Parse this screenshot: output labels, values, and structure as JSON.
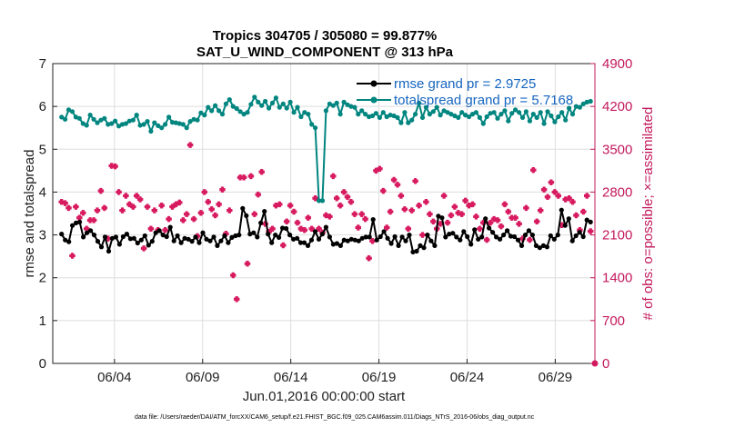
{
  "chart_data": {
    "type": "line",
    "title": "Tropics 304705 / 305080 = 99.877%",
    "subtitle": "SAT_U_WIND_COMPONENT @ 313 hPa",
    "xlabel": "Jun.01,2016 00:00:00 start",
    "ylabel": "rmse and totalspread",
    "ylabel_right": "# of obs: o=possible; ×=assimilated",
    "footnote": "data file: /Users/raeder/DAI/ATM_forcXX/CAM6_setup/f.e21.FHIST_BGC.f09_025.CAM6assim.011/Diags_NTrS_2016-06/obs_diag_output.nc",
    "xlim": [
      0.5,
      31.25
    ],
    "x_ticks": [
      4,
      9,
      14,
      19,
      24,
      29
    ],
    "x_tick_labels": [
      "06/04",
      "06/09",
      "06/14",
      "06/19",
      "06/24",
      "06/29"
    ],
    "ylim": [
      0,
      7
    ],
    "y_ticks": [
      "0",
      "1",
      "2",
      "3",
      "4",
      "5",
      "6",
      "7"
    ],
    "ylim_right": [
      0,
      4900
    ],
    "y_ticks_right": [
      "0",
      "700",
      "1400",
      "2100",
      "2800",
      "3500",
      "4200",
      "4900"
    ],
    "legend_position": "top-right",
    "colors": {
      "rmse": "#000000",
      "spread": "#00857f",
      "obs": "#d81b60",
      "legend_text": "#1565c0",
      "right_axis": "#c2185b",
      "grid": "#dddddd"
    },
    "series": [
      {
        "name": "rmse grand pr = 2.9725",
        "axis": "left",
        "style": "line-dot",
        "values": [
          3.02,
          2.88,
          2.84,
          3.22,
          3.28,
          3.3,
          2.95,
          3.05,
          3.1,
          3.0,
          2.85,
          2.72,
          2.95,
          2.62,
          2.92,
          2.95,
          2.78,
          2.96,
          3.02,
          2.91,
          2.92,
          2.81,
          2.88,
          2.98,
          2.76,
          2.85,
          3.05,
          3.1,
          3.0,
          2.96,
          3.18,
          2.86,
          2.98,
          2.82,
          2.92,
          2.9,
          2.85,
          2.95,
          2.82,
          3.05,
          2.9,
          2.86,
          2.95,
          2.75,
          2.86,
          2.98,
          2.82,
          2.94,
          2.98,
          3.0,
          3.62,
          3.45,
          3.02,
          3.05,
          2.95,
          3.28,
          3.55,
          3.02,
          2.82,
          3.0,
          2.94,
          3.16,
          3.15,
          3.0,
          2.9,
          2.92,
          2.82,
          2.82,
          2.75,
          2.88,
          3.08,
          2.9,
          3.02,
          3.18,
          2.95,
          2.78,
          2.8,
          2.75,
          2.88,
          2.86,
          2.9,
          2.88,
          2.86,
          2.92,
          2.95,
          2.95,
          3.36,
          2.88,
          2.96,
          3.08,
          2.92,
          2.8,
          2.96,
          2.75,
          2.95,
          2.86,
          3.0,
          2.6,
          2.62,
          2.75,
          2.7,
          3.0,
          2.86,
          2.75,
          3.44,
          3.4,
          2.95,
          3.02,
          3.04,
          2.95,
          2.88,
          3.08,
          2.96,
          2.78,
          3.12,
          2.9,
          2.95,
          3.38,
          3.16,
          3.06,
          2.95,
          2.9,
          3.0,
          3.1,
          2.97,
          2.96,
          2.88,
          2.75,
          3.0,
          3.1,
          3.0,
          2.75,
          2.7,
          2.75,
          2.72,
          2.98,
          2.9,
          3.0,
          3.58,
          3.22,
          3.38,
          2.86,
          2.98,
          3.06,
          2.96,
          3.35,
          3.3
        ]
      },
      {
        "name": "totalspread grand pr = 5.7168",
        "axis": "left",
        "style": "line-dot",
        "values": [
          5.75,
          5.7,
          5.92,
          5.88,
          5.75,
          5.72,
          5.6,
          5.56,
          5.8,
          5.7,
          5.62,
          5.68,
          5.72,
          5.58,
          5.6,
          5.66,
          5.54,
          5.58,
          5.6,
          5.66,
          5.68,
          5.8,
          5.56,
          5.58,
          5.65,
          5.42,
          5.62,
          5.55,
          5.5,
          5.58,
          5.75,
          5.63,
          5.62,
          5.6,
          5.58,
          5.5,
          5.65,
          5.7,
          5.68,
          5.85,
          5.8,
          5.98,
          5.9,
          6.02,
          5.9,
          5.82,
          6.06,
          6.16,
          6.0,
          5.95,
          5.88,
          5.82,
          5.86,
          6.05,
          6.22,
          6.1,
          6.02,
          6.12,
          5.96,
          6.08,
          6.2,
          5.98,
          6.06,
          5.96,
          6.1,
          5.86,
          5.98,
          5.76,
          5.86,
          5.82,
          5.58,
          5.5,
          3.8,
          3.8,
          5.9,
          6.06,
          6.02,
          6.08,
          5.82,
          6.1,
          6.04,
          6.0,
          5.98,
          5.82,
          5.9,
          5.82,
          5.76,
          5.78,
          5.84,
          5.74,
          5.86,
          5.76,
          5.8,
          5.78,
          5.74,
          5.62,
          5.86,
          5.62,
          5.68,
          5.82,
          6.08,
          5.74,
          5.98,
          5.82,
          5.88,
          5.98,
          5.8,
          5.9,
          5.86,
          5.82,
          5.78,
          5.74,
          5.86,
          5.8,
          5.76,
          5.82,
          5.86,
          5.74,
          5.6,
          5.76,
          5.84,
          5.86,
          5.72,
          5.82,
          5.9,
          5.66,
          5.84,
          5.92,
          5.86,
          5.74,
          5.88,
          5.66,
          5.82,
          5.74,
          5.86,
          5.6,
          5.88,
          5.78,
          5.64,
          5.76,
          5.86,
          5.68,
          5.96,
          5.82,
          6.0,
          5.98,
          6.06,
          6.1,
          6.12
        ]
      },
      {
        "name": "# of obs (possible / assimilated)",
        "axis": "right",
        "style": "marker",
        "values": [
          2640,
          2620,
          2540,
          1760,
          2560,
          2380,
          2460,
          2200,
          2340,
          2340,
          2500,
          2820,
          2540,
          2040,
          3230,
          3220,
          2800,
          2500,
          2740,
          2600,
          2560,
          2740,
          2680,
          1880,
          2560,
          2200,
          2500,
          2180,
          2580,
          2180,
          2360,
          2560,
          2600,
          2630,
          2340,
          2440,
          3570,
          2360,
          2080,
          2460,
          2800,
          2640,
          2520,
          2420,
          2600,
          2840,
          2120,
          2500,
          1440,
          1050,
          3040,
          3040,
          1630,
          3060,
          2440,
          2760,
          3130,
          2280,
          2150,
          2200,
          2580,
          2600,
          1930,
          2320,
          2580,
          2480,
          2300,
          2200,
          2180,
          2380,
          2200,
          2700,
          2200,
          2140,
          2420,
          2400,
          3060,
          2700,
          2580,
          2800,
          2720,
          2640,
          2440,
          2220,
          2440,
          2360,
          1720,
          2000,
          3150,
          3180,
          2820,
          2220,
          2480,
          3000,
          2920,
          2740,
          2520,
          2200,
          2500,
          2980,
          2580,
          2100,
          2640,
          2440,
          2320,
          2200,
          2280,
          2740,
          2300,
          2420,
          2560,
          2460,
          2440,
          2660,
          2580,
          2600,
          2400,
          2200,
          2300,
          2020,
          2300,
          2360,
          2340,
          2240,
          2600,
          2480,
          2380,
          2380,
          2280,
          2040,
          2540,
          2020,
          3160,
          2320,
          2500,
          2840,
          2720,
          2960,
          2800,
          2740,
          2260,
          2680,
          2700,
          2640,
          2420,
          2180,
          2480,
          2740,
          2160
        ]
      }
    ]
  }
}
